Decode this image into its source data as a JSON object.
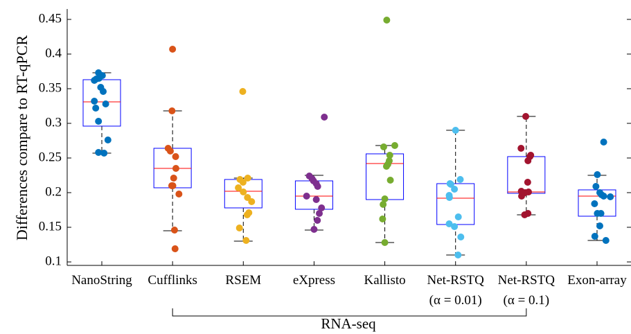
{
  "chart_data": {
    "type": "box",
    "ylabel": "Differences compare to RT-qPCR",
    "ylim": [
      0.095,
      0.465
    ],
    "yticks": [
      "0.1",
      "0.15",
      "0.2",
      "0.25",
      "0.3",
      "0.35",
      "0.4",
      "0.45"
    ],
    "group_bracket": {
      "label": "RNA-seq",
      "from_category": 1,
      "to_category": 6
    },
    "categories": [
      {
        "label": "NanoString",
        "sublabel": "",
        "color": "#0072BD",
        "box": {
          "whisker_low": 0.257,
          "q1": 0.296,
          "median": 0.331,
          "q3": 0.363,
          "whisker_high": 0.373
        },
        "points": [
          0.373,
          0.369,
          0.365,
          0.364,
          0.362,
          0.352,
          0.346,
          0.332,
          0.328,
          0.322,
          0.303,
          0.276,
          0.258,
          0.257
        ],
        "offsets": [
          -0.12,
          0.02,
          -0.1,
          -0.2,
          -0.27,
          -0.04,
          0.05,
          -0.27,
          0.14,
          -0.22,
          -0.12,
          0.22,
          -0.12,
          0.08
        ]
      },
      {
        "label": "Cufflinks",
        "sublabel": "",
        "color": "#D95319",
        "box": {
          "whisker_low": 0.145,
          "q1": 0.207,
          "median": 0.235,
          "q3": 0.264,
          "whisker_high": 0.318
        },
        "points": [
          0.407,
          0.318,
          0.264,
          0.26,
          0.252,
          0.235,
          0.221,
          0.21,
          0.21,
          0.198,
          0.146,
          0.119
        ],
        "offsets": [
          0.0,
          -0.02,
          -0.16,
          -0.08,
          0.11,
          0.12,
          0.04,
          -0.03,
          0.01,
          0.23,
          0.07,
          0.09
        ]
      },
      {
        "label": "RSEM",
        "sublabel": "",
        "color": "#EDB120",
        "box": {
          "whisker_low": 0.13,
          "q1": 0.178,
          "median": 0.202,
          "q3": 0.219,
          "whisker_high": 0.221
        },
        "points": [
          0.346,
          0.221,
          0.219,
          0.215,
          0.207,
          0.201,
          0.193,
          0.187,
          0.171,
          0.168,
          0.149,
          0.131
        ],
        "offsets": [
          -0.02,
          0.16,
          -0.12,
          -0.01,
          -0.18,
          0.0,
          0.15,
          0.3,
          0.2,
          0.14,
          -0.14,
          0.1
        ]
      },
      {
        "label": "eXpress",
        "sublabel": "",
        "color": "#7E2F8E",
        "box": {
          "whisker_low": 0.146,
          "q1": 0.176,
          "median": 0.195,
          "q3": 0.217,
          "whisker_high": 0.225
        },
        "points": [
          0.309,
          0.224,
          0.22,
          0.217,
          0.213,
          0.209,
          0.195,
          0.19,
          0.178,
          0.17,
          0.16,
          0.147
        ],
        "offsets": [
          0.37,
          -0.17,
          -0.07,
          -0.02,
          0.08,
          0.13,
          -0.27,
          0.08,
          0.27,
          0.19,
          0.12,
          0.0
        ]
      },
      {
        "label": "Kallisto",
        "sublabel": "",
        "color": "#77AC30",
        "box": {
          "whisker_low": 0.128,
          "q1": 0.19,
          "median": 0.242,
          "q3": 0.256,
          "whisker_high": 0.268
        },
        "points": [
          0.449,
          0.268,
          0.266,
          0.254,
          0.246,
          0.241,
          0.238,
          0.218,
          0.191,
          0.183,
          0.162,
          0.128
        ],
        "offsets": [
          0.07,
          0.36,
          -0.04,
          0.18,
          0.16,
          0.11,
          0.06,
          0.2,
          0.0,
          -0.06,
          -0.08,
          0.0
        ]
      },
      {
        "label": "Net-RSTQ",
        "sublabel": "(α = 0.01)",
        "color": "#4DBEEE",
        "box": {
          "whisker_low": 0.11,
          "q1": 0.154,
          "median": 0.192,
          "q3": 0.213,
          "whisker_high": 0.29
        },
        "points": [
          0.29,
          0.219,
          0.213,
          0.212,
          0.205,
          0.196,
          0.193,
          0.165,
          0.155,
          0.151,
          0.136,
          0.11
        ],
        "offsets": [
          0.0,
          0.17,
          -0.2,
          -0.17,
          -0.04,
          -0.23,
          -0.22,
          0.1,
          -0.23,
          -0.04,
          0.19,
          0.09
        ]
      },
      {
        "label": "Net-RSTQ",
        "sublabel": "(α = 0.1)",
        "color": "#A2142F",
        "box": {
          "whisker_low": 0.168,
          "q1": 0.199,
          "median": 0.201,
          "q3": 0.252,
          "whisker_high": 0.31
        },
        "points": [
          0.31,
          0.264,
          0.254,
          0.252,
          0.246,
          0.215,
          0.202,
          0.201,
          0.2,
          0.195,
          0.17,
          0.168
        ],
        "offsets": [
          -0.02,
          -0.19,
          0.16,
          0.13,
          0.06,
          0.05,
          -0.18,
          0.08,
          -0.04,
          -0.17,
          0.06,
          -0.06
        ]
      },
      {
        "label": "Exon-array",
        "sublabel": "",
        "color": "#0072BD",
        "box": {
          "whisker_low": 0.131,
          "q1": 0.166,
          "median": 0.195,
          "q3": 0.204,
          "whisker_high": 0.225
        },
        "points": [
          0.273,
          0.226,
          0.209,
          0.2,
          0.197,
          0.195,
          0.194,
          0.184,
          0.17,
          0.17,
          0.152,
          0.137,
          0.131
        ],
        "offsets": [
          0.24,
          0.01,
          -0.04,
          0.1,
          0.16,
          0.24,
          0.48,
          -0.09,
          0.14,
          0.01,
          0.1,
          -0.08,
          0.32
        ]
      }
    ]
  }
}
